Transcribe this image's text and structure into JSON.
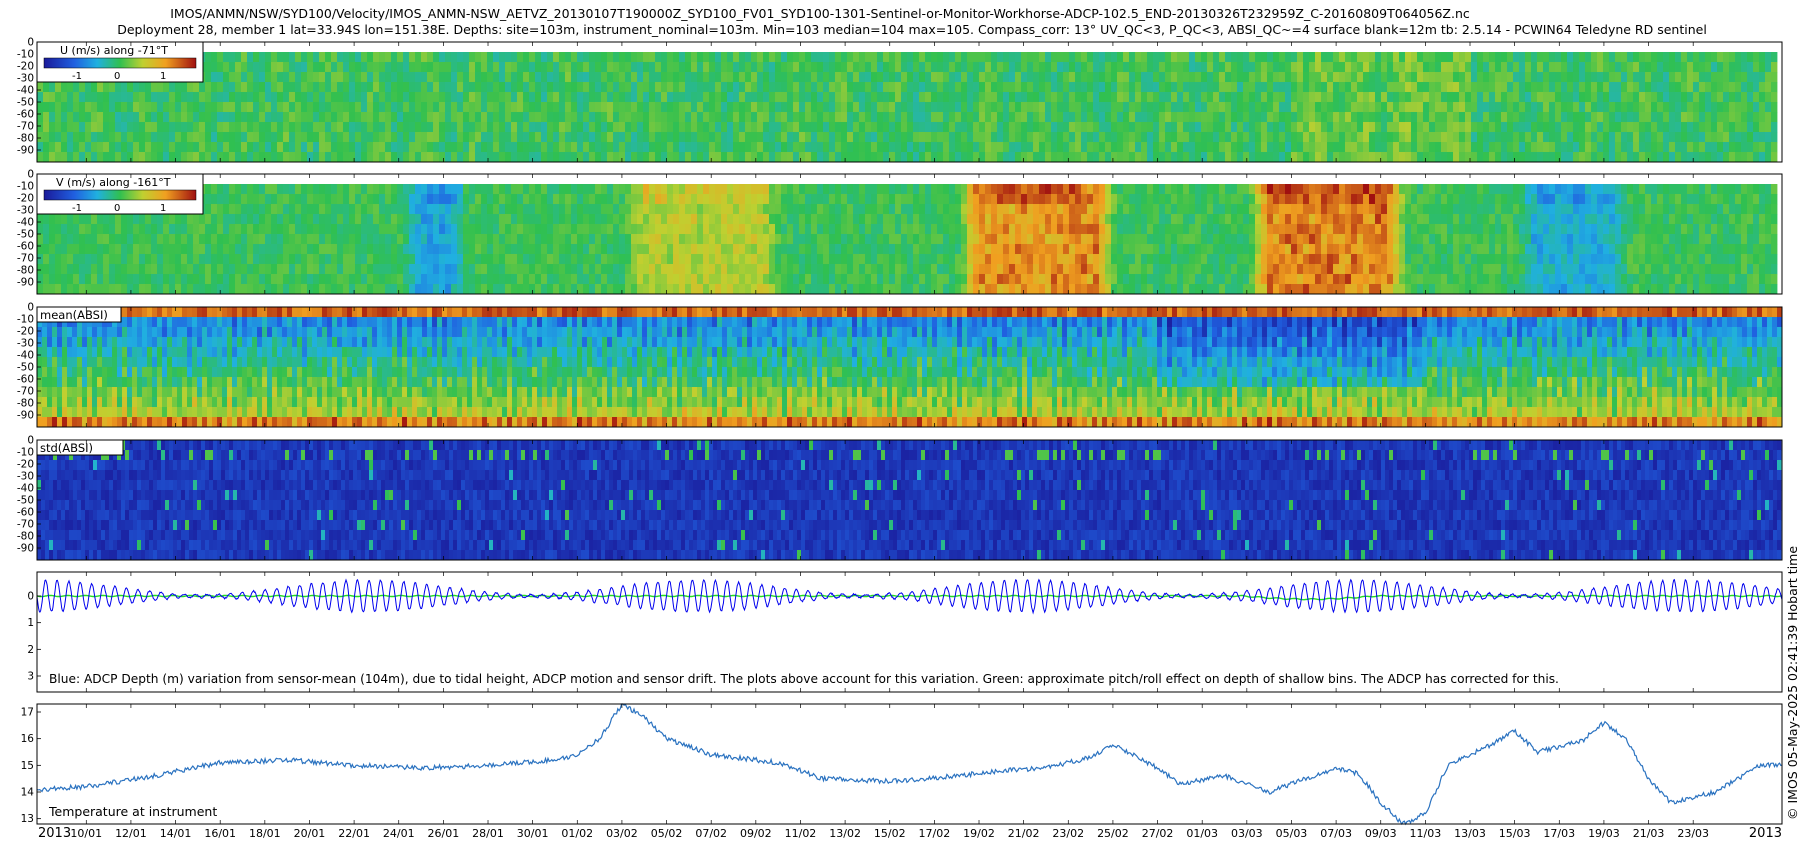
{
  "header": {
    "line1": "IMOS/ANMN/NSW/SYD100/Velocity/IMOS_ANMN-NSW_AETVZ_20130107T190000Z_SYD100_FV01_SYD100-1301-Sentinel-or-Monitor-Workhorse-ADCP-102.5_END-20130326T232959Z_C-20160809T064056Z.nc",
    "line2": "Deployment 28, member 1 lat=33.94S lon=151.38E. Depths: site=103m, instrument_nominal=103m. Min=103 median=104 max=105. Compass_corr: 13° UV_QC<3, P_QC<3, ABSI_QC~=4 surface blank=12m tb: 2.5.14 - PCWIN64 Teledyne RD sentinel"
  },
  "side_text": "© IMOS 05-May-2025 02:41:39 Hobart time",
  "colorbars": {
    "u": {
      "title": "U (m/s) along -71°T",
      "ticks": [
        "-1",
        "0",
        "1"
      ]
    },
    "v": {
      "title": "V (m/s) along -161°T",
      "ticks": [
        "-1",
        "0",
        "1"
      ]
    }
  },
  "panel_labels": {
    "mean_absi": "mean(ABSI)",
    "std_absi": "std(ABSI)",
    "depth_note": "Blue: ADCP Depth (m) variation from sensor-mean (104m), due to tidal height, ADCP motion and sensor drift. The plots above account for this variation. Green: approximate pitch/roll effect on depth of shallow bins. The ADCP has corrected for this.",
    "temp_note": "Temperature at instrument"
  },
  "x_axis": {
    "year_left": "2013",
    "year_right": "2013",
    "ticks": [
      "10/01",
      "12/01",
      "14/01",
      "16/01",
      "18/01",
      "20/01",
      "22/01",
      "24/01",
      "26/01",
      "28/01",
      "30/01",
      "01/02",
      "03/02",
      "05/02",
      "07/02",
      "09/02",
      "11/02",
      "13/02",
      "15/02",
      "17/02",
      "19/02",
      "21/02",
      "23/02",
      "25/02",
      "27/02",
      "01/03",
      "03/03",
      "05/03",
      "07/03",
      "09/03",
      "11/03",
      "13/03",
      "15/03",
      "17/03",
      "19/03",
      "21/03",
      "23/03"
    ]
  },
  "chart_data": [
    {
      "type": "heatmap",
      "title": "U (m/s) along -71°T",
      "y_ticks": [
        "0",
        "-10",
        "-20",
        "-30",
        "-40",
        "-50",
        "-60",
        "-70",
        "-80",
        "-90"
      ],
      "ylim": [
        0,
        -100
      ],
      "clim": [
        -1.5,
        1.5
      ],
      "xlim": [
        "2013-01-07 19:00",
        "2013-03-26 23:30"
      ],
      "description_values": {
        "typical": 0.0,
        "range": [
          -0.5,
          0.5
        ]
      }
    },
    {
      "type": "heatmap",
      "title": "V (m/s) along -161°T",
      "y_ticks": [
        "0",
        "-10",
        "-20",
        "-30",
        "-40",
        "-50",
        "-60",
        "-70",
        "-80",
        "-90"
      ],
      "ylim": [
        0,
        -100
      ],
      "clim": [
        -1.5,
        1.5
      ],
      "xlim": [
        "2013-01-07 19:00",
        "2013-03-26 23:30"
      ],
      "notable_periods": [
        {
          "from": "2013-01-24",
          "to": "2013-01-27",
          "value": -0.6
        },
        {
          "from": "2013-02-03",
          "to": "2013-02-10",
          "value": 0.5
        },
        {
          "from": "2013-02-18",
          "to": "2013-02-25",
          "value": 1.1
        },
        {
          "from": "2013-03-03",
          "to": "2013-03-10",
          "value": 1.2
        },
        {
          "from": "2013-03-15",
          "to": "2013-03-20",
          "value": -0.5
        }
      ]
    },
    {
      "type": "heatmap",
      "title": "mean(ABSI)",
      "y_ticks": [
        "0",
        "-10",
        "-20",
        "-30",
        "-40",
        "-50",
        "-60",
        "-70",
        "-80",
        "-90"
      ],
      "ylim": [
        0,
        -100
      ]
    },
    {
      "type": "heatmap",
      "title": "std(ABSI)",
      "y_ticks": [
        "0",
        "-10",
        "-20",
        "-30",
        "-40",
        "-50",
        "-60",
        "-70",
        "-80",
        "-90"
      ],
      "ylim": [
        0,
        -100
      ]
    },
    {
      "type": "line",
      "y_ticks": [
        "0",
        "1",
        "2",
        "3"
      ],
      "ylim": [
        -0.9,
        3.6
      ],
      "series": [
        {
          "color": "#0000ee",
          "tidal_amplitude_m": 0.6,
          "tidal_period_hours": 12.42
        },
        {
          "color": "#22dd22",
          "offset_m": 0.0
        }
      ]
    },
    {
      "type": "line",
      "y_ticks": [
        "13",
        "14",
        "15",
        "16",
        "17"
      ],
      "ylim": [
        12.8,
        17.3
      ],
      "series": [
        {
          "color": "#2a72c0",
          "x": [
            "2013-01-08",
            "2013-01-10",
            "2013-01-13",
            "2013-01-16",
            "2013-01-19",
            "2013-01-22",
            "2013-01-25",
            "2013-01-28",
            "2013-01-31",
            "2013-02-01",
            "2013-02-02",
            "2013-02-03",
            "2013-02-04",
            "2013-02-05",
            "2013-02-07",
            "2013-02-10",
            "2013-02-12",
            "2013-02-15",
            "2013-02-18",
            "2013-02-20",
            "2013-02-22",
            "2013-02-24",
            "2013-02-25",
            "2013-02-27",
            "2013-02-28",
            "2013-03-02",
            "2013-03-04",
            "2013-03-06",
            "2013-03-07",
            "2013-03-08",
            "2013-03-09",
            "2013-03-10",
            "2013-03-11",
            "2013-03-12",
            "2013-03-14",
            "2013-03-15",
            "2013-03-16",
            "2013-03-18",
            "2013-03-19",
            "2013-03-20",
            "2013-03-21",
            "2013-03-22",
            "2013-03-24",
            "2013-03-26"
          ],
          "values": [
            14.1,
            14.2,
            14.6,
            15.1,
            15.2,
            15.0,
            14.9,
            15.0,
            15.2,
            15.4,
            16.0,
            17.3,
            16.8,
            16.0,
            15.4,
            15.1,
            14.5,
            14.4,
            14.6,
            14.8,
            14.9,
            15.3,
            15.8,
            14.9,
            14.3,
            14.6,
            14.0,
            14.6,
            14.9,
            14.7,
            13.6,
            12.8,
            13.2,
            15.0,
            15.8,
            16.3,
            15.5,
            15.9,
            16.6,
            16.0,
            14.5,
            13.6,
            14.0,
            15.0
          ]
        }
      ]
    }
  ]
}
